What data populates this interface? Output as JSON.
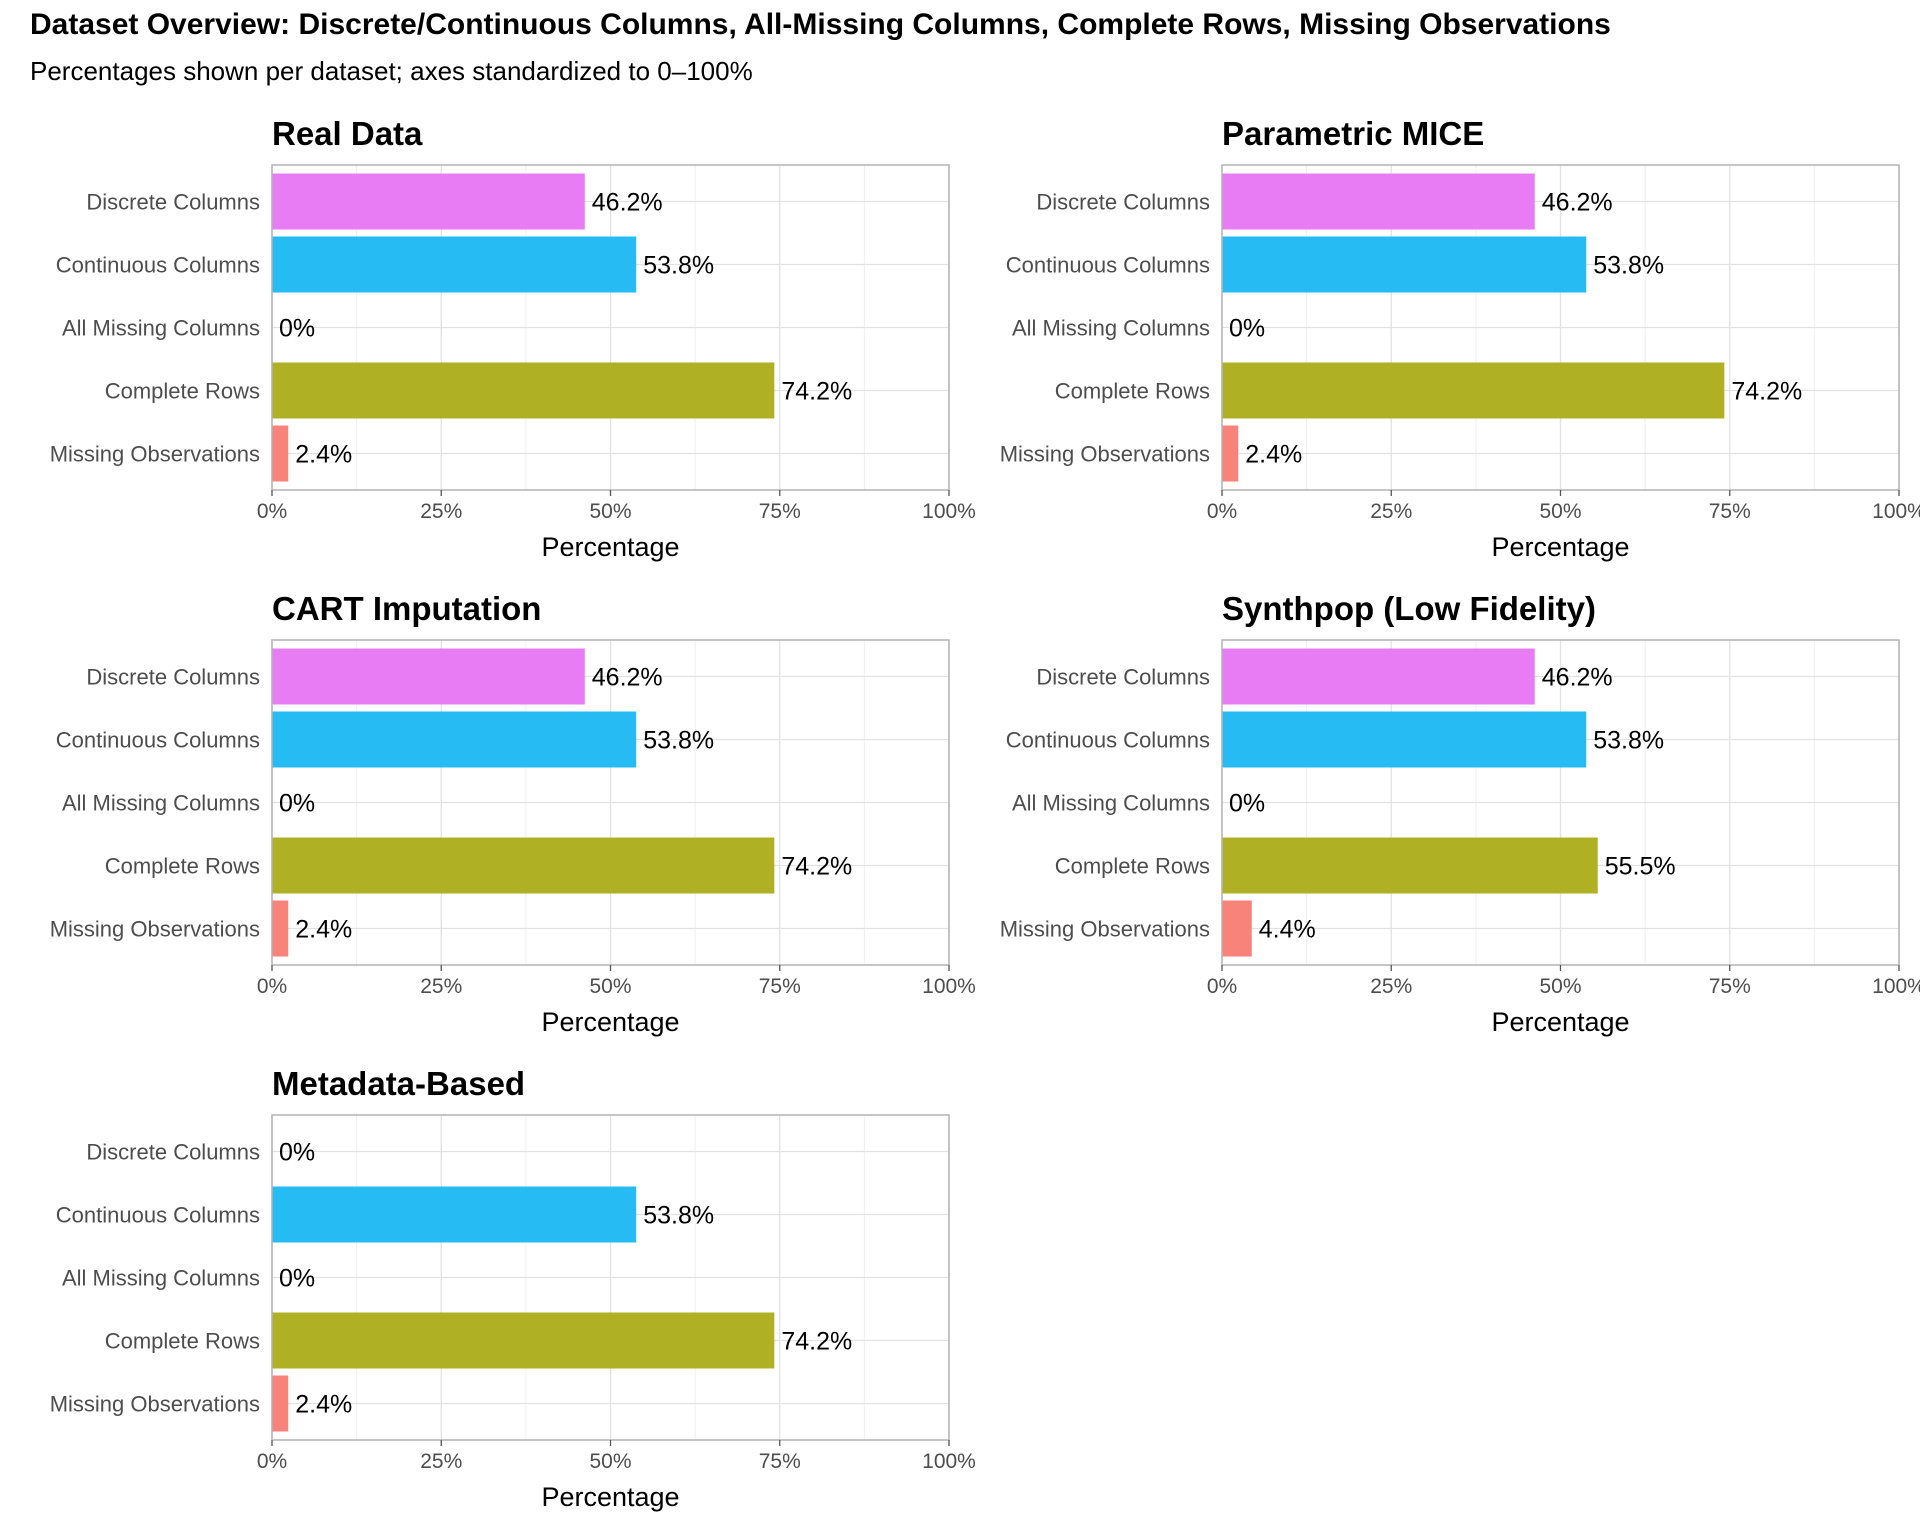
{
  "title": "Dataset Overview: Discrete/Continuous Columns, All-Missing Columns, Complete Rows, Missing Observations",
  "subtitle": "Percentages shown per dataset; axes standardized to 0–100%",
  "colors": {
    "Discrete Columns": "#e87cf4",
    "Continuous Columns": "#27bbf4",
    "All Missing Columns": "#00c08a",
    "Complete Rows": "#afb024",
    "Missing Observations": "#f8837b"
  },
  "chart_data": [
    {
      "type": "bar",
      "orientation": "horizontal",
      "title": "Real Data",
      "categories": [
        "Discrete Columns",
        "Continuous Columns",
        "All Missing Columns",
        "Complete Rows",
        "Missing Observations"
      ],
      "values": [
        46.2,
        53.8,
        0,
        74.2,
        2.4
      ],
      "data_labels": [
        "46.2%",
        "53.8%",
        "0%",
        "74.2%",
        "2.4%"
      ],
      "xlabel": "Percentage",
      "xlim": [
        0,
        100
      ],
      "xticks": [
        "0%",
        "25%",
        "50%",
        "75%",
        "100%"
      ],
      "grid": true
    },
    {
      "type": "bar",
      "orientation": "horizontal",
      "title": "Parametric MICE",
      "categories": [
        "Discrete Columns",
        "Continuous Columns",
        "All Missing Columns",
        "Complete Rows",
        "Missing Observations"
      ],
      "values": [
        46.2,
        53.8,
        0,
        74.2,
        2.4
      ],
      "data_labels": [
        "46.2%",
        "53.8%",
        "0%",
        "74.2%",
        "2.4%"
      ],
      "xlabel": "Percentage",
      "xlim": [
        0,
        100
      ],
      "xticks": [
        "0%",
        "25%",
        "50%",
        "75%",
        "100%"
      ],
      "grid": true
    },
    {
      "type": "bar",
      "orientation": "horizontal",
      "title": "CART Imputation",
      "categories": [
        "Discrete Columns",
        "Continuous Columns",
        "All Missing Columns",
        "Complete Rows",
        "Missing Observations"
      ],
      "values": [
        46.2,
        53.8,
        0,
        74.2,
        2.4
      ],
      "data_labels": [
        "46.2%",
        "53.8%",
        "0%",
        "74.2%",
        "2.4%"
      ],
      "xlabel": "Percentage",
      "xlim": [
        0,
        100
      ],
      "xticks": [
        "0%",
        "25%",
        "50%",
        "75%",
        "100%"
      ],
      "grid": true
    },
    {
      "type": "bar",
      "orientation": "horizontal",
      "title": "Synthpop (Low Fidelity)",
      "categories": [
        "Discrete Columns",
        "Continuous Columns",
        "All Missing Columns",
        "Complete Rows",
        "Missing Observations"
      ],
      "values": [
        46.2,
        53.8,
        0,
        55.5,
        4.4
      ],
      "data_labels": [
        "46.2%",
        "53.8%",
        "0%",
        "55.5%",
        "4.4%"
      ],
      "xlabel": "Percentage",
      "xlim": [
        0,
        100
      ],
      "xticks": [
        "0%",
        "25%",
        "50%",
        "75%",
        "100%"
      ],
      "grid": true
    },
    {
      "type": "bar",
      "orientation": "horizontal",
      "title": "Metadata-Based",
      "categories": [
        "Discrete Columns",
        "Continuous Columns",
        "All Missing Columns",
        "Complete Rows",
        "Missing Observations"
      ],
      "values": [
        0,
        53.8,
        0,
        74.2,
        2.4
      ],
      "data_labels": [
        "0%",
        "53.8%",
        "0%",
        "74.2%",
        "2.4%"
      ],
      "xlabel": "Percentage",
      "xlim": [
        0,
        100
      ],
      "xticks": [
        "0%",
        "25%",
        "50%",
        "75%",
        "100%"
      ],
      "grid": true
    }
  ]
}
